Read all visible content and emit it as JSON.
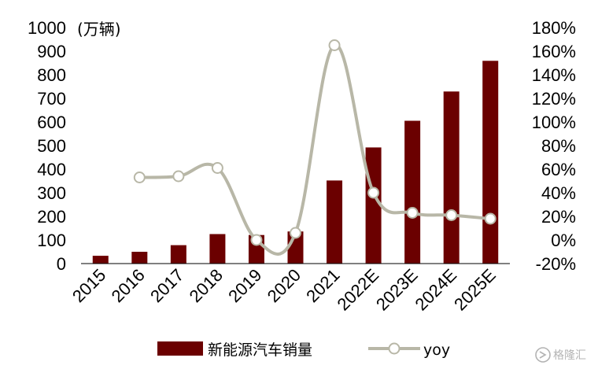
{
  "chart_data": {
    "type": "bar+line",
    "unit_label": "(万辆)",
    "categories": [
      "2015",
      "2016",
      "2017",
      "2018",
      "2019",
      "2020",
      "2021",
      "2022E",
      "2023E",
      "2024E",
      "2025E"
    ],
    "series": [
      {
        "name": "新能源汽车销量",
        "type": "bar",
        "axis": "left",
        "color": "#6b0000",
        "values": [
          33,
          50,
          78,
          125,
          121,
          136,
          352,
          492,
          605,
          729,
          859
        ]
      },
      {
        "name": "yoy",
        "type": "line",
        "axis": "right",
        "color": "#b8b7a7",
        "values": [
          null,
          53,
          54,
          61,
          0,
          6,
          165,
          40,
          23,
          21,
          18
        ]
      }
    ],
    "y_left": {
      "min": 0,
      "max": 1000,
      "step": 100,
      "tick_labels": [
        "0",
        "100",
        "200",
        "300",
        "400",
        "500",
        "600",
        "700",
        "800",
        "900",
        "1000"
      ]
    },
    "y_right": {
      "min": -20,
      "max": 180,
      "step": 20,
      "tick_labels": [
        "-20%",
        "0%",
        "20%",
        "40%",
        "60%",
        "80%",
        "100%",
        "120%",
        "140%",
        "160%",
        "180%"
      ]
    },
    "grid": false,
    "legend_position": "bottom"
  },
  "watermark": {
    "text": "格隆汇",
    "icon": "gelonghui-logo-icon"
  }
}
